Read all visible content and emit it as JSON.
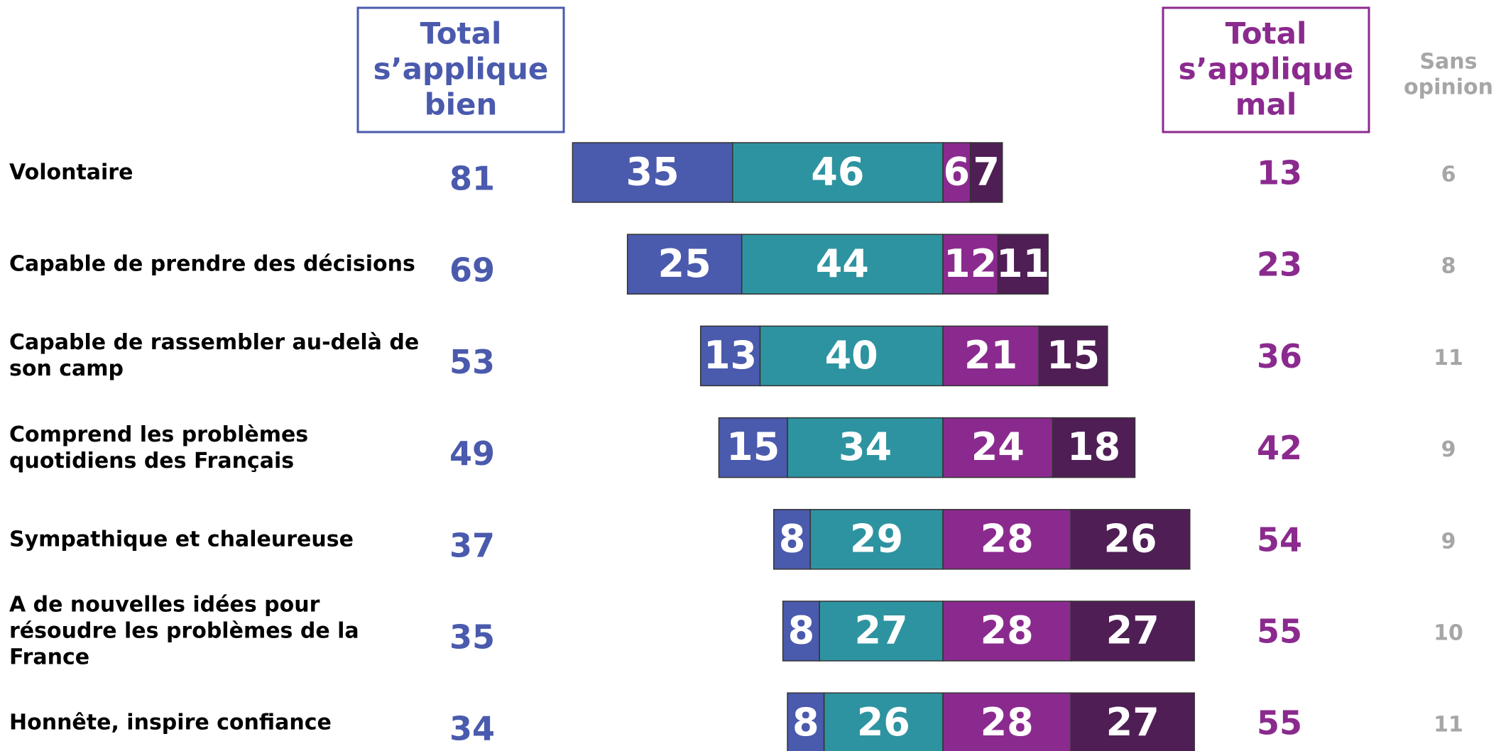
{
  "chart_data": {
    "type": "diverging-bar",
    "header_good": [
      "Total",
      "s’applique",
      "bien"
    ],
    "header_bad": [
      "Total",
      "s’applique",
      "mal"
    ],
    "header_none": [
      "Sans",
      "opinion"
    ],
    "categories": [
      "Volontaire",
      "Capable de prendre des décisions",
      "Capable de rassembler au-delà de son camp",
      "Comprend les problèmes quotidiens des Français",
      "Sympathique et chaleureuse",
      "A de nouvelles idées pour résoudre les problèmes de la France",
      "Honnête, inspire confiance"
    ],
    "series": [
      {
        "color": "#4a5aad",
        "side": "left",
        "values": [
          35,
          25,
          13,
          15,
          8,
          8,
          8
        ]
      },
      {
        "color": "#2e93a0",
        "side": "left",
        "values": [
          46,
          44,
          40,
          34,
          29,
          27,
          26
        ]
      },
      {
        "color": "#8b2a8e",
        "side": "right",
        "values": [
          6,
          12,
          21,
          24,
          28,
          28,
          28
        ]
      },
      {
        "color": "#4f1e55",
        "side": "right",
        "values": [
          7,
          11,
          15,
          18,
          26,
          27,
          27
        ]
      }
    ],
    "total_good": [
      81,
      69,
      53,
      49,
      37,
      35,
      34
    ],
    "total_bad": [
      13,
      23,
      36,
      42,
      54,
      55,
      55
    ],
    "no_opinion": [
      6,
      8,
      11,
      9,
      9,
      10,
      11
    ],
    "good_color": "#4a5aad",
    "bad_color": "#8b2a8e",
    "none_color": "#a6a6a6"
  }
}
